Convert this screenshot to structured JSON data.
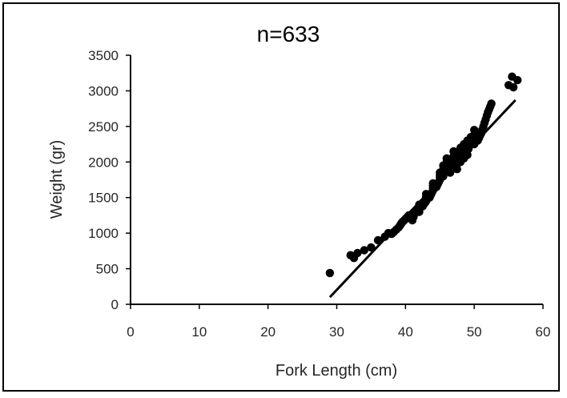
{
  "chart_data": {
    "type": "scatter",
    "title": "n=633",
    "xlabel": "Fork Length (cm)",
    "ylabel": "Weight (gr)",
    "xlim": [
      0,
      60
    ],
    "ylim": [
      0,
      3500
    ],
    "xticks": [
      "0",
      "10",
      "20",
      "30",
      "40",
      "50",
      "60"
    ],
    "yticks": [
      "0",
      "500",
      "1000",
      "1500",
      "2000",
      "2500",
      "3000",
      "3500"
    ],
    "grid": false,
    "legend": "none",
    "colors": {
      "points": "#000000",
      "line": "#000000",
      "axes": "#000000"
    },
    "series": [
      {
        "points": [
          [
            29.0,
            440
          ],
          [
            32.0,
            690
          ],
          [
            32.5,
            650
          ],
          [
            33.0,
            720
          ],
          [
            34.0,
            760
          ],
          [
            35.0,
            800
          ],
          [
            36.0,
            900
          ],
          [
            37.0,
            950
          ],
          [
            37.5,
            1000
          ],
          [
            38.0,
            990
          ],
          [
            39.0,
            1080
          ],
          [
            39.5,
            1150
          ],
          [
            40.0,
            1200
          ],
          [
            40.5,
            1250
          ],
          [
            41.0,
            1180
          ],
          [
            41.5,
            1320
          ],
          [
            42.0,
            1300
          ],
          [
            42.0,
            1400
          ],
          [
            42.5,
            1380
          ],
          [
            43.0,
            1450
          ],
          [
            43.0,
            1550
          ],
          [
            43.5,
            1500
          ],
          [
            44.0,
            1600
          ],
          [
            44.0,
            1700
          ],
          [
            44.5,
            1650
          ],
          [
            45.0,
            1750
          ],
          [
            45.0,
            1850
          ],
          [
            45.5,
            1800
          ],
          [
            45.5,
            1950
          ],
          [
            46.0,
            1900
          ],
          [
            46.0,
            2050
          ],
          [
            46.5,
            1850
          ],
          [
            46.5,
            2000
          ],
          [
            47.0,
            1950
          ],
          [
            47.0,
            2150
          ],
          [
            47.5,
            2100
          ],
          [
            47.5,
            1900
          ],
          [
            48.0,
            2200
          ],
          [
            48.0,
            2000
          ],
          [
            48.5,
            2250
          ],
          [
            48.5,
            2050
          ],
          [
            49.0,
            2300
          ],
          [
            49.0,
            2100
          ],
          [
            49.5,
            2350
          ],
          [
            50.0,
            2250
          ],
          [
            50.0,
            2450
          ],
          [
            50.5,
            2300
          ],
          [
            51.0,
            2400
          ],
          [
            51.5,
            2550
          ],
          [
            52.0,
            2700
          ],
          [
            52.5,
            2820
          ],
          [
            55.0,
            3080
          ],
          [
            55.5,
            3200
          ],
          [
            55.7,
            3050
          ],
          [
            56.3,
            3150
          ]
        ]
      }
    ],
    "trendline": {
      "x": [
        29.0,
        56.0
      ],
      "y": [
        100,
        2870
      ]
    }
  }
}
